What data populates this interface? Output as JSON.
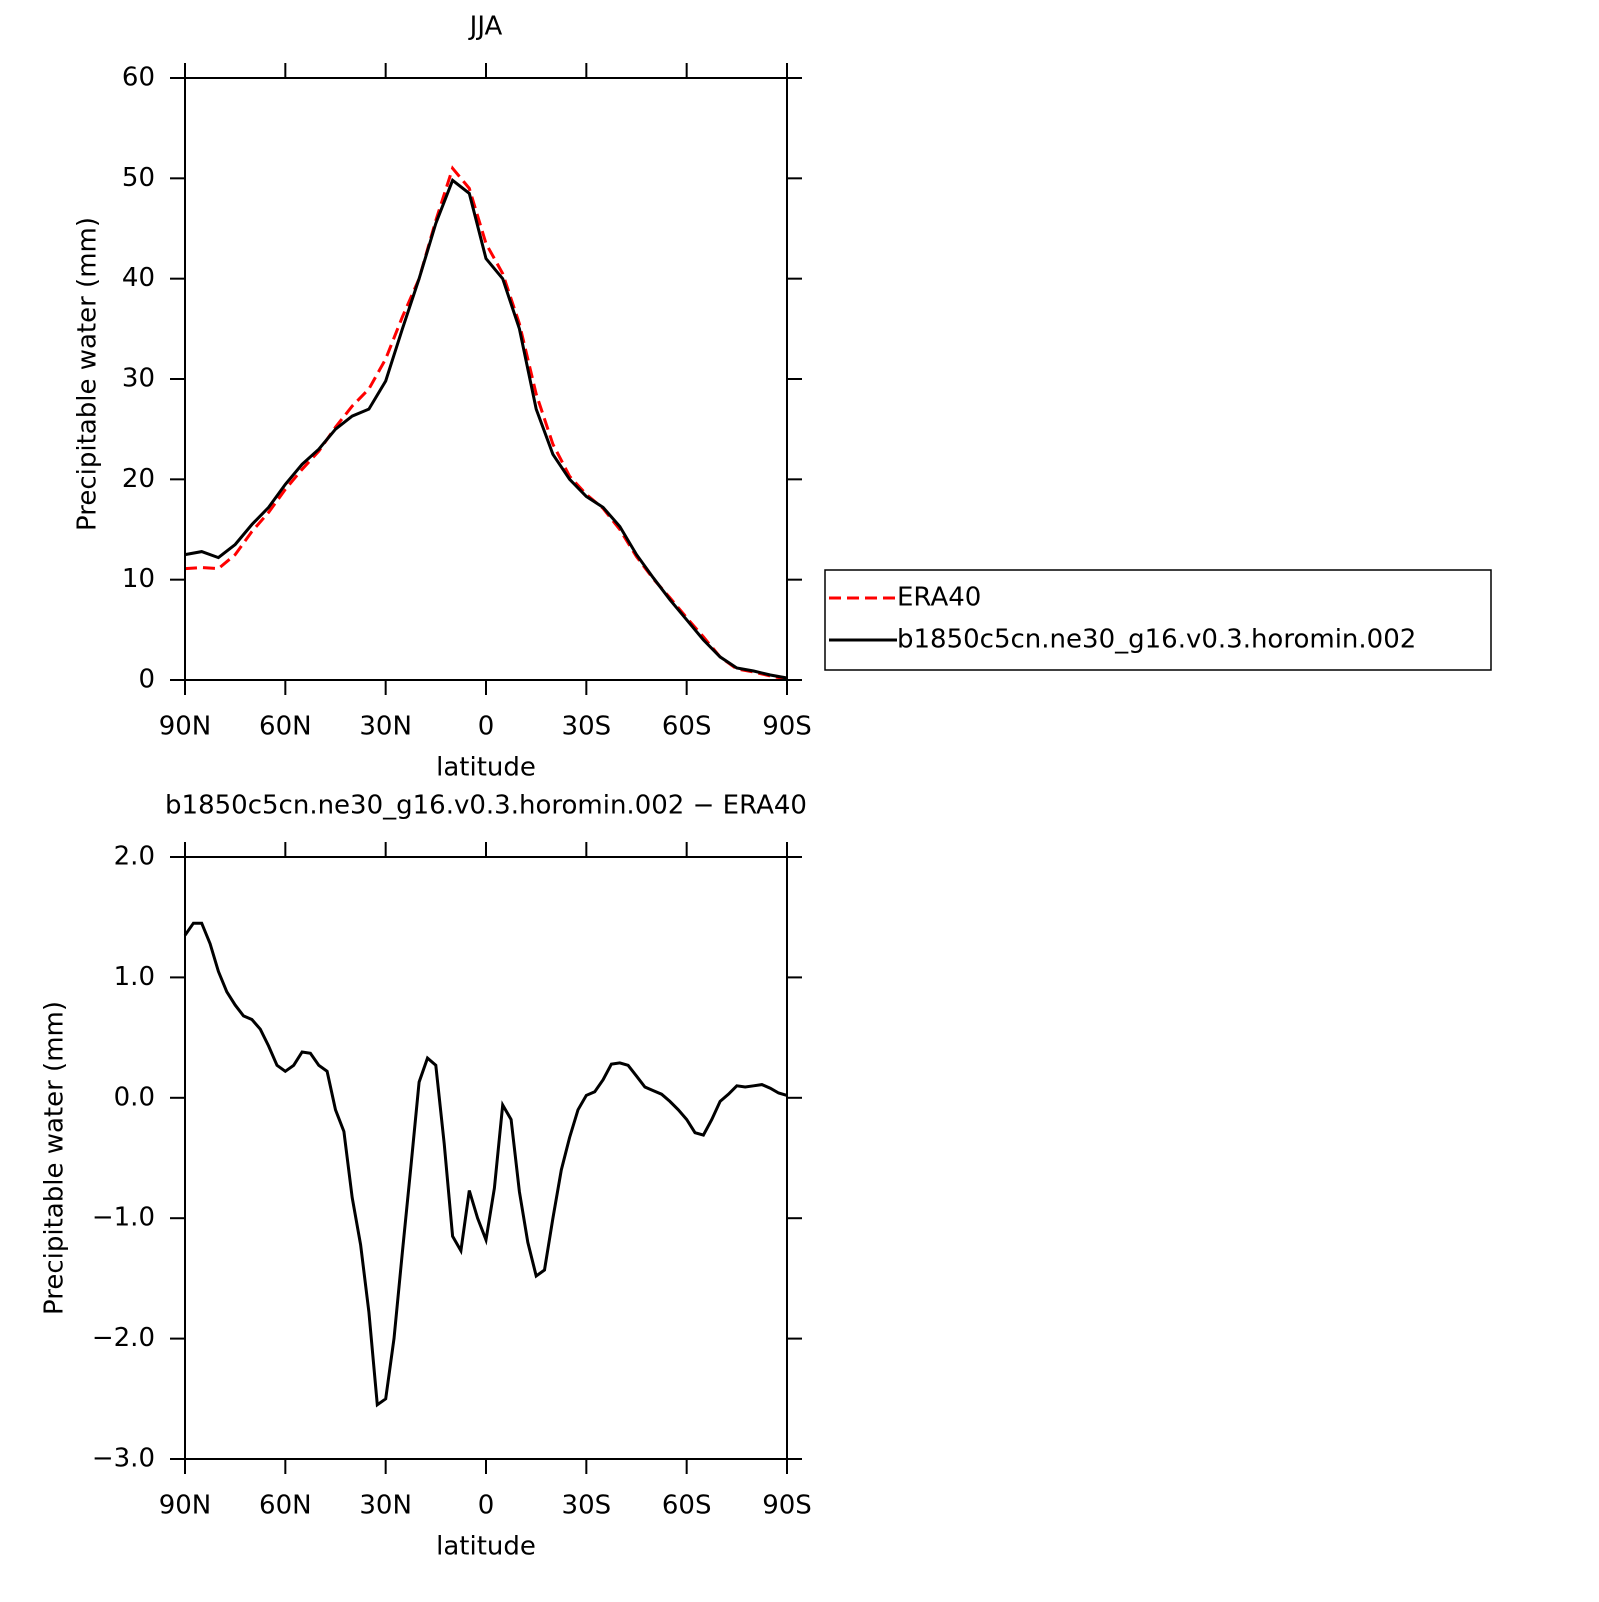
{
  "chart_data": [
    {
      "type": "line",
      "title": "JJA",
      "xlabel": "latitude",
      "ylabel": "Precipitable water (mm)",
      "x": [
        90,
        85,
        80,
        75,
        70,
        65,
        60,
        55,
        50,
        45,
        40,
        35,
        30,
        25,
        20,
        15,
        10,
        5,
        0,
        -5,
        -10,
        -15,
        -20,
        -25,
        -30,
        -35,
        -40,
        -45,
        -50,
        -55,
        -60,
        -65,
        -70,
        -75,
        -80,
        -85,
        -90
      ],
      "series": [
        {
          "name": "ERA40",
          "color": "#ff0000",
          "dashed": true,
          "values": [
            11.1,
            11.2,
            11.1,
            12.5,
            14.8,
            16.7,
            19.0,
            21.0,
            22.8,
            25.2,
            27.3,
            29.0,
            32.0,
            36.2,
            40.0,
            45.8,
            51.0,
            49.0,
            43.5,
            40.5,
            35.5,
            28.5,
            23.5,
            20.3,
            18.5,
            17.1,
            15.0,
            12.3,
            10.1,
            8.2,
            6.2,
            4.3,
            2.3,
            1.1,
            0.8,
            0.4,
            0.1
          ]
        },
        {
          "name": "b1850c5cn.ne30_g16.v0.3.horomin.002",
          "color": "#000000",
          "dashed": false,
          "values": [
            12.5,
            12.8,
            12.2,
            13.5,
            15.5,
            17.2,
            19.5,
            21.5,
            23.0,
            25.0,
            26.3,
            27.0,
            29.8,
            35.0,
            40.0,
            45.5,
            49.8,
            48.5,
            42.0,
            40.0,
            35.0,
            27.0,
            22.5,
            20.0,
            18.3,
            17.2,
            15.3,
            12.5,
            10.2,
            8.0,
            6.0,
            4.0,
            2.3,
            1.2,
            0.9,
            0.5,
            0.2
          ]
        }
      ],
      "xlim": [
        90,
        -90
      ],
      "xticks": [
        {
          "value": 90,
          "label": "90N"
        },
        {
          "value": 60,
          "label": "60N"
        },
        {
          "value": 30,
          "label": "30N"
        },
        0,
        {
          "value": -30,
          "label": "30S"
        },
        {
          "value": -60,
          "label": "60S"
        },
        {
          "value": -90,
          "label": "90S"
        }
      ],
      "ylim": [
        0,
        60
      ],
      "yticks": [
        0,
        10,
        20,
        30,
        40,
        50,
        60
      ],
      "grid": false,
      "legend": "right"
    },
    {
      "type": "line",
      "title": "b1850c5cn.ne30_g16.v0.3.horomin.002 − ERA40",
      "xlabel": "latitude",
      "ylabel": "Precipitable water (mm)",
      "x": [
        90,
        87.5,
        85,
        82.5,
        80,
        77.5,
        75,
        72.5,
        70,
        67.5,
        65,
        62.5,
        60,
        57.5,
        55,
        52.5,
        50,
        47.5,
        45,
        42.5,
        40,
        37.5,
        35,
        32.5,
        30,
        27.5,
        25,
        22.5,
        20,
        17.5,
        15,
        12.5,
        10,
        7.5,
        5,
        2.5,
        0,
        -2.5,
        -5,
        -7.5,
        -10,
        -12.5,
        -15,
        -17.5,
        -20,
        -22.5,
        -25,
        -27.5,
        -30,
        -32.5,
        -35,
        -37.5,
        -40,
        -42.5,
        -45,
        -47.5,
        -50,
        -52.5,
        -55,
        -57.5,
        -60,
        -62.5,
        -65,
        -67.5,
        -70,
        -72.5,
        -75,
        -77.5,
        -80,
        -82.5,
        -85,
        -87.5,
        -90
      ],
      "color": "#000000",
      "values": [
        1.35,
        1.45,
        1.45,
        1.28,
        1.05,
        0.88,
        0.77,
        0.68,
        0.65,
        0.57,
        0.43,
        0.27,
        0.22,
        0.27,
        0.38,
        0.37,
        0.27,
        0.22,
        -0.1,
        -0.28,
        -0.83,
        -1.22,
        -1.78,
        -2.55,
        -2.5,
        -2.0,
        -1.28,
        -0.58,
        0.13,
        0.33,
        0.27,
        -0.38,
        -1.15,
        -1.27,
        -0.77,
        -1.0,
        -1.18,
        -0.75,
        -0.06,
        -0.18,
        -0.78,
        -1.2,
        -1.48,
        -1.43,
        -1.0,
        -0.6,
        -0.33,
        -0.1,
        0.02,
        0.05,
        0.15,
        0.28,
        0.29,
        0.27,
        0.18,
        0.09,
        0.06,
        0.03,
        -0.03,
        -0.1,
        -0.18,
        -0.29,
        -0.31,
        -0.18,
        -0.03,
        0.03,
        0.1,
        0.09,
        0.1,
        0.11,
        0.08,
        0.04,
        0.02
      ],
      "xlim": [
        90,
        -90
      ],
      "xticks": [
        {
          "value": 90,
          "label": "90N"
        },
        {
          "value": 60,
          "label": "60N"
        },
        {
          "value": 30,
          "label": "30N"
        },
        0,
        {
          "value": -30,
          "label": "30S"
        },
        {
          "value": -60,
          "label": "60S"
        },
        {
          "value": -90,
          "label": "90S"
        }
      ],
      "ylim": [
        -3,
        2
      ],
      "yticks": [
        {
          "value": 2,
          "label": "2.0"
        },
        {
          "value": 1,
          "label": "1.0"
        },
        {
          "value": 0,
          "label": "0.0"
        },
        {
          "value": -1,
          "label": "−1.0"
        },
        {
          "value": -2,
          "label": "−2.0"
        },
        {
          "value": -3,
          "label": "−3.0"
        }
      ],
      "grid": false
    }
  ]
}
